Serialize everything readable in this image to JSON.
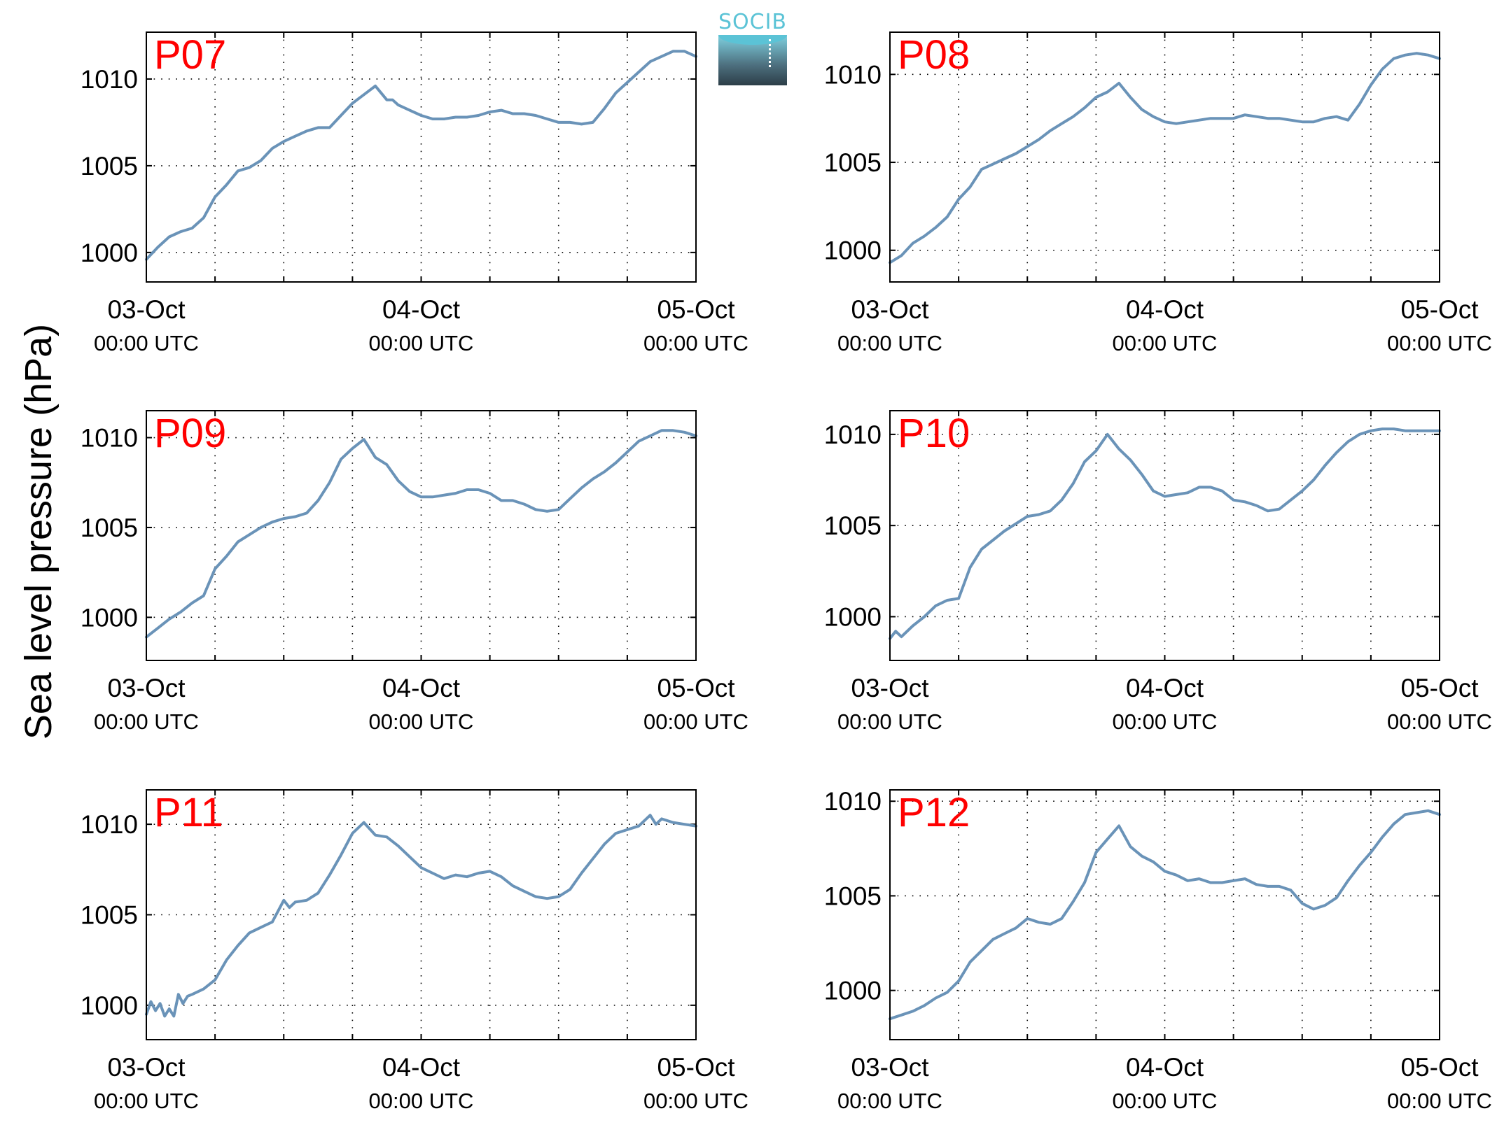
{
  "figure": {
    "ylabel": "Sea level pressure (hPa)",
    "logo_text": "SOCIB"
  },
  "colors": {
    "line": "#6a93b8",
    "panel_label": "#ff0000",
    "axis": "#000000",
    "grid": "#000000"
  },
  "chart_data": [
    {
      "type": "line",
      "panel_label": "P07",
      "x_unit": "hours since 03-Oct 00:00 UTC",
      "xlim": [
        0,
        48
      ],
      "ylim": [
        998.3,
        1012.7
      ],
      "yticks": [
        1000,
        1005,
        1010
      ],
      "xticks": [
        {
          "day": "03-Oct",
          "time": "00:00 UTC"
        },
        {
          "day": "04-Oct",
          "time": "00:00 UTC"
        },
        {
          "day": "05-Oct",
          "time": "00:00 UTC"
        }
      ],
      "grid": true,
      "series": [
        {
          "x": [
            0,
            1,
            2,
            3,
            4,
            5,
            6,
            7,
            8,
            9,
            10,
            11,
            12,
            13,
            14,
            15,
            16,
            17,
            18,
            19,
            20,
            21,
            21.5,
            22,
            23,
            24,
            25,
            26,
            27,
            28,
            29,
            30,
            31,
            32,
            33,
            34,
            35,
            36,
            37,
            38,
            39,
            40,
            41,
            42,
            43,
            44,
            45,
            46,
            47,
            48
          ],
          "y": [
            999.6,
            1000.3,
            1000.9,
            1001.2,
            1001.4,
            1002.0,
            1003.2,
            1003.9,
            1004.7,
            1004.9,
            1005.3,
            1006.0,
            1006.4,
            1006.7,
            1007.0,
            1007.2,
            1007.2,
            1007.9,
            1008.6,
            1009.1,
            1009.6,
            1008.8,
            1008.8,
            1008.5,
            1008.2,
            1007.9,
            1007.7,
            1007.7,
            1007.8,
            1007.8,
            1007.9,
            1008.1,
            1008.2,
            1008.0,
            1008.0,
            1007.9,
            1007.7,
            1007.5,
            1007.5,
            1007.4,
            1007.5,
            1008.3,
            1009.2,
            1009.8,
            1010.4,
            1011.0,
            1011.3,
            1011.6,
            1011.6,
            1011.3
          ]
        }
      ]
    },
    {
      "type": "line",
      "panel_label": "P08",
      "x_unit": "hours since 03-Oct 00:00 UTC",
      "xlim": [
        0,
        48
      ],
      "ylim": [
        998.2,
        1012.4
      ],
      "yticks": [
        1000,
        1005,
        1010
      ],
      "xticks": [
        {
          "day": "03-Oct",
          "time": "00:00 UTC"
        },
        {
          "day": "04-Oct",
          "time": "00:00 UTC"
        },
        {
          "day": "05-Oct",
          "time": "00:00 UTC"
        }
      ],
      "grid": true,
      "series": [
        {
          "x": [
            0,
            1,
            2,
            3,
            4,
            5,
            6,
            7,
            8,
            9,
            10,
            11,
            12,
            13,
            14,
            15,
            16,
            17,
            18,
            19,
            20,
            21,
            22,
            23,
            24,
            25,
            26,
            27,
            28,
            29,
            30,
            31,
            32,
            33,
            34,
            35,
            36,
            37,
            38,
            39,
            40,
            41,
            42,
            43,
            44,
            45,
            46,
            47,
            48
          ],
          "y": [
            999.3,
            999.7,
            1000.4,
            1000.8,
            1001.3,
            1001.9,
            1002.9,
            1003.6,
            1004.6,
            1004.9,
            1005.2,
            1005.5,
            1005.9,
            1006.3,
            1006.8,
            1007.2,
            1007.6,
            1008.1,
            1008.7,
            1009.0,
            1009.5,
            1008.7,
            1008.0,
            1007.6,
            1007.3,
            1007.2,
            1007.3,
            1007.4,
            1007.5,
            1007.5,
            1007.5,
            1007.7,
            1007.6,
            1007.5,
            1007.5,
            1007.4,
            1007.3,
            1007.3,
            1007.5,
            1007.6,
            1007.4,
            1008.3,
            1009.4,
            1010.3,
            1010.9,
            1011.1,
            1011.2,
            1011.1,
            1010.9
          ]
        }
      ]
    },
    {
      "type": "line",
      "panel_label": "P09",
      "x_unit": "hours since 03-Oct 00:00 UTC",
      "xlim": [
        0,
        48
      ],
      "ylim": [
        997.6,
        1011.5
      ],
      "yticks": [
        1000,
        1005,
        1010
      ],
      "xticks": [
        {
          "day": "03-Oct",
          "time": "00:00 UTC"
        },
        {
          "day": "04-Oct",
          "time": "00:00 UTC"
        },
        {
          "day": "05-Oct",
          "time": "00:00 UTC"
        }
      ],
      "grid": true,
      "series": [
        {
          "x": [
            0,
            1,
            2,
            3,
            4,
            5,
            6,
            7,
            8,
            9,
            10,
            11,
            12,
            13,
            14,
            15,
            16,
            17,
            18,
            19,
            20,
            21,
            22,
            23,
            24,
            25,
            26,
            27,
            28,
            29,
            30,
            31,
            32,
            33,
            34,
            35,
            36,
            37,
            38,
            39,
            40,
            41,
            42,
            43,
            44,
            45,
            46,
            47,
            48
          ],
          "y": [
            998.9,
            999.4,
            999.9,
            1000.3,
            1000.8,
            1001.2,
            1002.7,
            1003.4,
            1004.2,
            1004.6,
            1005.0,
            1005.3,
            1005.5,
            1005.6,
            1005.8,
            1006.5,
            1007.5,
            1008.8,
            1009.4,
            1009.9,
            1008.9,
            1008.5,
            1007.6,
            1007.0,
            1006.7,
            1006.7,
            1006.8,
            1006.9,
            1007.1,
            1007.1,
            1006.9,
            1006.5,
            1006.5,
            1006.3,
            1006.0,
            1005.9,
            1006.0,
            1006.6,
            1007.2,
            1007.7,
            1008.1,
            1008.6,
            1009.2,
            1009.8,
            1010.1,
            1010.4,
            1010.4,
            1010.3,
            1010.1
          ]
        }
      ]
    },
    {
      "type": "line",
      "panel_label": "P10",
      "x_unit": "hours since 03-Oct 00:00 UTC",
      "xlim": [
        0,
        48
      ],
      "ylim": [
        997.6,
        1011.3
      ],
      "yticks": [
        1000,
        1005,
        1010
      ],
      "xticks": [
        {
          "day": "03-Oct",
          "time": "00:00 UTC"
        },
        {
          "day": "04-Oct",
          "time": "00:00 UTC"
        },
        {
          "day": "05-Oct",
          "time": "00:00 UTC"
        }
      ],
      "grid": true,
      "series": [
        {
          "x": [
            0,
            0.5,
            1,
            2,
            3,
            4,
            5,
            6,
            7,
            8,
            9,
            10,
            11,
            12,
            13,
            14,
            15,
            16,
            17,
            18,
            19,
            20,
            21,
            22,
            23,
            24,
            25,
            26,
            27,
            28,
            29,
            30,
            31,
            32,
            33,
            34,
            35,
            36,
            37,
            38,
            39,
            40,
            41,
            42,
            43,
            44,
            45,
            46,
            47,
            48
          ],
          "y": [
            998.8,
            999.2,
            998.9,
            999.5,
            1000.0,
            1000.6,
            1000.9,
            1001.0,
            1002.7,
            1003.7,
            1004.2,
            1004.7,
            1005.1,
            1005.5,
            1005.6,
            1005.8,
            1006.4,
            1007.3,
            1008.5,
            1009.1,
            1010.0,
            1009.2,
            1008.6,
            1007.8,
            1006.9,
            1006.6,
            1006.7,
            1006.8,
            1007.1,
            1007.1,
            1006.9,
            1006.4,
            1006.3,
            1006.1,
            1005.8,
            1005.9,
            1006.4,
            1006.9,
            1007.5,
            1008.3,
            1009.0,
            1009.6,
            1010.0,
            1010.2,
            1010.3,
            1010.3,
            1010.2,
            1010.2,
            1010.2,
            1010.2
          ]
        }
      ]
    },
    {
      "type": "line",
      "panel_label": "P11",
      "x_unit": "hours since 03-Oct 00:00 UTC",
      "xlim": [
        0,
        48
      ],
      "ylim": [
        998.1,
        1011.9
      ],
      "yticks": [
        1000,
        1005,
        1010
      ],
      "xticks": [
        {
          "day": "03-Oct",
          "time": "00:00 UTC"
        },
        {
          "day": "04-Oct",
          "time": "00:00 UTC"
        },
        {
          "day": "05-Oct",
          "time": "00:00 UTC"
        }
      ],
      "grid": true,
      "series": [
        {
          "x": [
            0,
            0.4,
            0.8,
            1.2,
            1.6,
            2.0,
            2.4,
            2.8,
            3.2,
            3.6,
            4,
            5,
            6,
            7,
            8,
            9,
            10,
            11,
            12,
            12.5,
            13,
            14,
            15,
            16,
            17,
            18,
            19,
            20,
            21,
            22,
            23,
            24,
            25,
            26,
            27,
            28,
            29,
            30,
            31,
            32,
            33,
            34,
            35,
            36,
            37,
            38,
            39,
            40,
            41,
            42,
            43,
            44,
            44.5,
            45,
            46,
            47,
            48
          ],
          "y": [
            999.5,
            1000.2,
            999.7,
            1000.1,
            999.4,
            999.8,
            999.4,
            1000.6,
            1000.1,
            1000.5,
            1000.6,
            1000.9,
            1001.4,
            1002.5,
            1003.3,
            1004.0,
            1004.3,
            1004.6,
            1005.8,
            1005.4,
            1005.7,
            1005.8,
            1006.2,
            1007.2,
            1008.3,
            1009.5,
            1010.1,
            1009.4,
            1009.3,
            1008.8,
            1008.2,
            1007.6,
            1007.3,
            1007.0,
            1007.2,
            1007.1,
            1007.3,
            1007.4,
            1007.1,
            1006.6,
            1006.3,
            1006.0,
            1005.9,
            1006.0,
            1006.4,
            1007.3,
            1008.1,
            1008.9,
            1009.5,
            1009.7,
            1009.9,
            1010.5,
            1010.0,
            1010.3,
            1010.1,
            1010.0,
            1009.9
          ]
        }
      ]
    },
    {
      "type": "line",
      "panel_label": "P12",
      "x_unit": "hours since 03-Oct 00:00 UTC",
      "xlim": [
        0,
        48
      ],
      "ylim": [
        997.4,
        1010.6
      ],
      "yticks": [
        1000,
        1005,
        1010
      ],
      "xticks": [
        {
          "day": "03-Oct",
          "time": "00:00 UTC"
        },
        {
          "day": "04-Oct",
          "time": "00:00 UTC"
        },
        {
          "day": "05-Oct",
          "time": "00:00 UTC"
        }
      ],
      "grid": true,
      "series": [
        {
          "x": [
            0,
            1,
            2,
            3,
            4,
            5,
            6,
            7,
            8,
            9,
            10,
            11,
            12,
            13,
            14,
            15,
            16,
            17,
            18,
            19,
            20,
            21,
            22,
            23,
            24,
            25,
            26,
            27,
            28,
            29,
            30,
            31,
            32,
            33,
            34,
            35,
            36,
            37,
            38,
            39,
            40,
            41,
            42,
            43,
            44,
            45,
            46,
            47,
            48
          ],
          "y": [
            998.5,
            998.7,
            998.9,
            999.2,
            999.6,
            999.9,
            1000.5,
            1001.5,
            1002.1,
            1002.7,
            1003.0,
            1003.3,
            1003.8,
            1003.6,
            1003.5,
            1003.8,
            1004.7,
            1005.7,
            1007.3,
            1008.0,
            1008.7,
            1007.6,
            1007.1,
            1006.8,
            1006.3,
            1006.1,
            1005.8,
            1005.9,
            1005.7,
            1005.7,
            1005.8,
            1005.9,
            1005.6,
            1005.5,
            1005.5,
            1005.3,
            1004.6,
            1004.3,
            1004.5,
            1004.9,
            1005.8,
            1006.6,
            1007.3,
            1008.1,
            1008.8,
            1009.3,
            1009.4,
            1009.5,
            1009.3
          ]
        }
      ]
    }
  ]
}
